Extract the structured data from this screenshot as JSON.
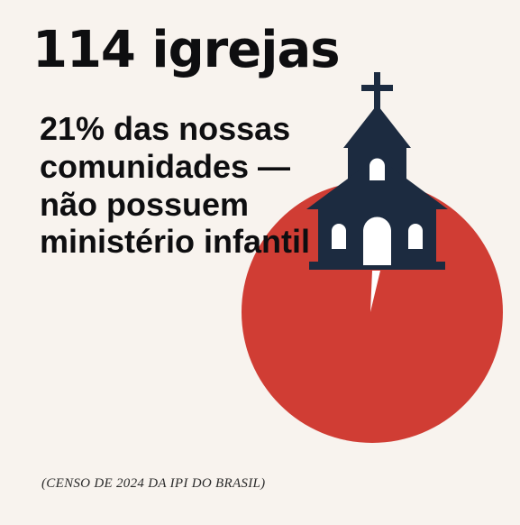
{
  "headline": "114 igrejas",
  "subline": "21% das nossas comunidades — não possuem ministério infantil",
  "source": "(CENSO DE 2024 DA IPI DO BRASIL)",
  "icons": {
    "pie": "pie-slice-graphic",
    "church": "church-icon"
  },
  "colors": {
    "background": "#f8f3ee",
    "accent_red": "#d03d34",
    "navy": "#1c2b40",
    "text": "#0e0e10"
  }
}
